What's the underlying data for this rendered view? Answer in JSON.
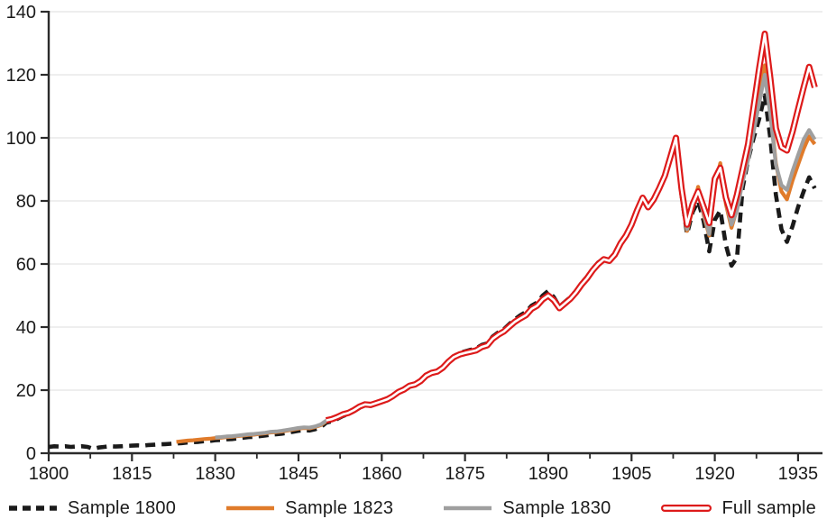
{
  "chart_data": {
    "type": "line",
    "title": "",
    "xlabel": "",
    "ylabel": "",
    "xlim": [
      1800,
      1939.4
    ],
    "ylim": [
      0,
      140
    ],
    "y_ticks": [
      0,
      20,
      40,
      60,
      80,
      100,
      120,
      140
    ],
    "x_ticks": [
      1800,
      1815,
      1830,
      1845,
      1860,
      1875,
      1890,
      1905,
      1920,
      1935
    ],
    "x_minor_ticks": [
      1807.5,
      1822.5,
      1837.5,
      1852.5,
      1867.5,
      1882.5,
      1897.5,
      1912.5,
      1927.5
    ],
    "grid": "horizontal",
    "legend_position": "bottom",
    "colors": {
      "axis": "#2b2b2b",
      "grid": "#e8e8e8",
      "text": "#1a1a1a",
      "background": "#ffffff",
      "sample_1800": "#1a1a1a",
      "sample_1823": "#e07b2b",
      "sample_1830": "#9f9f9f",
      "full_sample": "#dd1a1a"
    },
    "series": [
      {
        "name": "Sample 1800",
        "style": "dashed",
        "color": "#1a1a1a",
        "start_year": 1800,
        "end_year": 1938,
        "values": [
          2.0,
          2.2,
          2.1,
          2.2,
          2.0,
          2.1,
          2.2,
          2.0,
          1.4,
          1.8,
          2.0,
          2.2,
          2.1,
          2.2,
          2.3,
          2.4,
          2.5,
          2.4,
          2.6,
          2.7,
          2.8,
          2.9,
          3.0,
          3.1,
          3.2,
          3.4,
          3.5,
          3.6,
          3.8,
          3.9,
          4.1,
          4.2,
          4.4,
          4.5,
          4.7,
          4.9,
          5.1,
          5.2,
          5.4,
          5.6,
          5.9,
          6.0,
          6.2,
          6.5,
          6.8,
          7.1,
          7.3,
          7.2,
          7.6,
          8.2,
          9.7,
          10.1,
          10.9,
          11.8,
          12.4,
          13.3,
          14.4,
          15.2,
          15.0,
          15.6,
          16.2,
          16.8,
          17.9,
          19.2,
          20.1,
          21.3,
          21.7,
          22.8,
          24.5,
          25.4,
          25.8,
          27.0,
          29.2,
          30.8,
          31.8,
          32.3,
          32.8,
          33.2,
          34.3,
          34.8,
          37.0,
          38.3,
          39.3,
          41.0,
          42.5,
          43.8,
          44.8,
          46.8,
          47.8,
          50.0,
          51.5,
          49.5,
          46.5,
          48.0,
          49.5,
          51.5,
          54.0,
          56.0,
          58.5,
          60.5,
          61.5,
          61.0,
          63.0,
          66.5,
          69.0,
          72.5,
          77.0,
          81.0,
          78.0,
          80.5,
          84.0,
          88.0,
          94.0,
          99.5,
          82.0,
          69.5,
          76.5,
          80.0,
          73.5,
          64.0,
          74.0,
          77.0,
          66.0,
          59.5,
          62.0,
          84.0,
          93.0,
          100.0,
          106.0,
          113.5,
          100.0,
          82.0,
          71.0,
          67.0,
          72.0,
          78.0,
          83.0,
          87.5,
          84.0
        ]
      },
      {
        "name": "Sample 1823",
        "style": "solid",
        "color": "#e07b2b",
        "start_year": 1823,
        "end_year": 1938,
        "values": [
          3.6,
          3.8,
          4.0,
          4.1,
          4.3,
          4.5,
          4.6,
          4.8,
          4.9,
          5.1,
          5.2,
          5.4,
          5.6,
          5.8,
          5.9,
          6.1,
          6.3,
          6.6,
          6.7,
          6.9,
          7.2,
          7.5,
          7.8,
          8.0,
          7.9,
          8.3,
          8.9,
          10.1,
          10.5,
          11.2,
          12.0,
          12.5,
          13.4,
          14.5,
          15.2,
          15.0,
          15.6,
          16.2,
          16.8,
          17.8,
          19.1,
          19.9,
          21.1,
          21.5,
          22.6,
          24.3,
          25.2,
          25.6,
          26.8,
          28.7,
          30.2,
          31.0,
          31.5,
          31.9,
          32.3,
          33.4,
          33.9,
          36.0,
          37.3,
          38.3,
          39.9,
          41.4,
          42.5,
          43.5,
          45.5,
          46.5,
          48.5,
          49.7,
          48.2,
          45.7,
          47.2,
          48.7,
          50.7,
          53.2,
          55.2,
          57.7,
          59.7,
          61.2,
          60.7,
          62.7,
          66.2,
          68.7,
          72.2,
          76.7,
          80.7,
          77.7,
          80.2,
          83.7,
          87.7,
          93.7,
          99.5,
          81.5,
          70.5,
          77.5,
          84.5,
          75.5,
          69.0,
          85.0,
          92.0,
          79.0,
          71.5,
          77.5,
          87.0,
          94.5,
          104.0,
          114.0,
          123.0,
          109.0,
          92.0,
          83.0,
          80.5,
          86.5,
          91.5,
          96.5,
          100.5,
          98.0
        ]
      },
      {
        "name": "Sample 1830",
        "style": "solid",
        "color": "#9f9f9f",
        "start_year": 1830,
        "end_year": 1938,
        "values": [
          5.0,
          5.1,
          5.3,
          5.4,
          5.6,
          5.8,
          6.0,
          6.1,
          6.3,
          6.5,
          6.8,
          6.9,
          7.1,
          7.4,
          7.7,
          8.0,
          8.2,
          8.1,
          8.5,
          9.1,
          10.3,
          10.7,
          11.4,
          12.2,
          12.7,
          13.6,
          14.7,
          15.4,
          15.2,
          15.8,
          16.4,
          17.0,
          18.0,
          19.3,
          20.1,
          21.3,
          21.7,
          22.8,
          24.5,
          25.4,
          25.8,
          27.0,
          28.9,
          30.4,
          31.2,
          31.7,
          32.1,
          32.5,
          33.6,
          34.1,
          36.2,
          37.5,
          38.5,
          40.1,
          41.6,
          42.7,
          43.7,
          45.7,
          46.7,
          48.7,
          49.9,
          48.4,
          45.9,
          47.4,
          48.9,
          50.9,
          53.4,
          55.4,
          57.9,
          59.9,
          61.4,
          60.9,
          62.9,
          66.4,
          68.9,
          72.4,
          76.9,
          80.9,
          77.9,
          80.4,
          83.9,
          87.9,
          93.9,
          99.8,
          82.5,
          71.0,
          78.0,
          82.0,
          76.0,
          69.5,
          86.0,
          89.5,
          80.0,
          72.5,
          77.0,
          86.0,
          93.0,
          102.0,
          111.0,
          120.0,
          107.5,
          91.5,
          85.0,
          83.5,
          89.5,
          94.5,
          99.5,
          102.5,
          99.5
        ]
      },
      {
        "name": "Full sample",
        "style": "double",
        "color": "#dd1a1a",
        "start_year": 1850,
        "end_year": 1938,
        "values": [
          10.4,
          10.8,
          11.5,
          12.3,
          12.8,
          13.7,
          14.8,
          15.5,
          15.3,
          15.9,
          16.5,
          17.1,
          18.1,
          19.4,
          20.2,
          21.4,
          21.8,
          22.9,
          24.6,
          25.5,
          25.9,
          27.1,
          29.0,
          30.5,
          31.3,
          31.8,
          32.2,
          32.6,
          33.7,
          34.2,
          36.3,
          37.6,
          38.6,
          40.2,
          41.7,
          42.8,
          43.8,
          45.8,
          46.8,
          48.8,
          50.0,
          48.5,
          46.0,
          47.5,
          49.0,
          51.0,
          53.5,
          55.5,
          58.0,
          60.0,
          61.5,
          61.0,
          63.0,
          66.5,
          69.0,
          72.5,
          77.0,
          81.0,
          78.0,
          80.5,
          84.0,
          88.0,
          94.0,
          100.0,
          84.0,
          72.5,
          79.0,
          83.0,
          78.0,
          73.0,
          87.0,
          90.5,
          81.0,
          75.5,
          82.0,
          90.0,
          98.0,
          110.0,
          122.0,
          133.0,
          119.0,
          103.0,
          97.0,
          96.0,
          102.0,
          109.0,
          116.0,
          122.5,
          116.0
        ]
      }
    ]
  }
}
